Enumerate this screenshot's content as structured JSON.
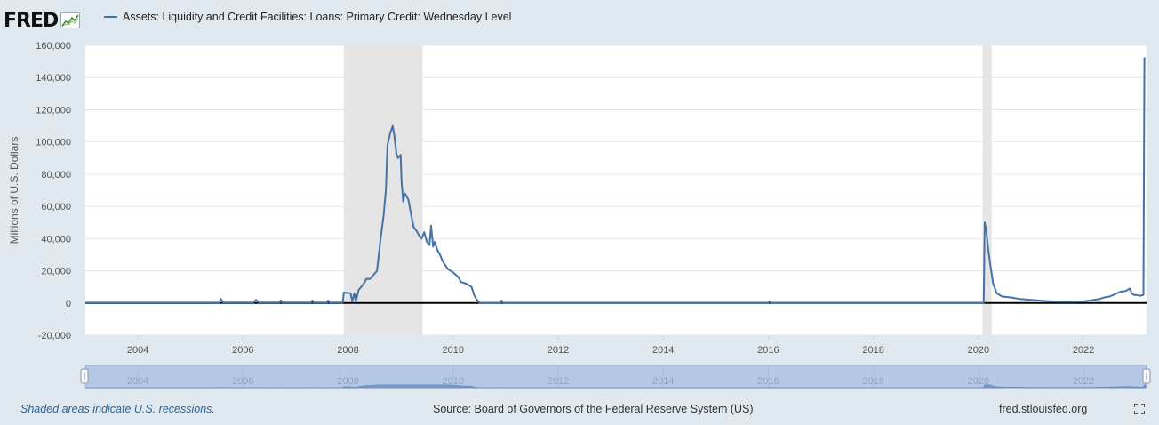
{
  "header": {
    "logo_text": "FRED",
    "legend_label": "Assets: Liquidity and Credit Facilities: Loans: Primary Credit: Wednesday Level",
    "series_color": "#4572a7"
  },
  "footer": {
    "recession_note": "Shaded areas indicate U.S. recessions.",
    "source": "Source: Board of Governors of the Federal Reserve System (US)",
    "site": "fred.stlouisfed.org"
  },
  "icons": {
    "logo": "fred-logo-graph-icon",
    "fullscreen": "fullscreen-icon"
  },
  "chart_data": {
    "type": "line",
    "title": "",
    "xlabel": "",
    "ylabel": "Millions of U.S. Dollars",
    "xlim": [
      2003.0,
      2023.2
    ],
    "ylim": [
      -20000,
      160000
    ],
    "yticks": [
      -20000,
      0,
      20000,
      40000,
      60000,
      80000,
      100000,
      120000,
      140000,
      160000
    ],
    "ytick_labels": [
      "-20,000",
      "0",
      "20,000",
      "40,000",
      "60,000",
      "80,000",
      "100,000",
      "120,000",
      "140,000",
      "160,000"
    ],
    "xticks": [
      2004,
      2006,
      2008,
      2010,
      2012,
      2014,
      2016,
      2018,
      2020,
      2022
    ],
    "xtick_labels": [
      "2004",
      "2006",
      "2008",
      "2010",
      "2012",
      "2014",
      "2016",
      "2018",
      "2020",
      "2022"
    ],
    "grid": true,
    "recessions": [
      [
        2007.92,
        2009.42
      ],
      [
        2020.08,
        2020.25
      ]
    ],
    "navigator_labels": [
      "2004",
      "2006",
      "2008",
      "2010",
      "2012",
      "2014",
      "2016",
      "2018",
      "2020",
      "2022"
    ],
    "series": [
      {
        "name": "Assets: Liquidity and Credit Facilities: Loans: Primary Credit: Wednesday Level",
        "color": "#4572a7",
        "x": [
          2003.0,
          2005.55,
          2005.58,
          2005.62,
          2006.2,
          2006.25,
          2006.3,
          2006.7,
          2006.72,
          2006.75,
          2007.3,
          2007.32,
          2007.35,
          2007.6,
          2007.62,
          2007.65,
          2007.9,
          2007.92,
          2008.05,
          2008.08,
          2008.12,
          2008.15,
          2008.2,
          2008.3,
          2008.35,
          2008.42,
          2008.5,
          2008.55,
          2008.62,
          2008.68,
          2008.72,
          2008.75,
          2008.8,
          2008.85,
          2008.88,
          2008.92,
          2008.95,
          2009.0,
          2009.02,
          2009.05,
          2009.08,
          2009.12,
          2009.15,
          2009.2,
          2009.25,
          2009.3,
          2009.35,
          2009.4,
          2009.45,
          2009.5,
          2009.55,
          2009.58,
          2009.62,
          2009.65,
          2009.7,
          2009.75,
          2009.8,
          2009.9,
          2010.0,
          2010.1,
          2010.15,
          2010.25,
          2010.35,
          2010.4,
          2010.45,
          2010.5,
          2010.55,
          2010.9,
          2010.92,
          2010.95,
          2016.0,
          2016.02,
          2016.05,
          2020.1,
          2020.12,
          2020.15,
          2020.18,
          2020.22,
          2020.28,
          2020.35,
          2020.45,
          2020.6,
          2020.8,
          2021.0,
          2021.2,
          2021.4,
          2021.6,
          2021.8,
          2022.0,
          2022.2,
          2022.3,
          2022.4,
          2022.5,
          2022.6,
          2022.7,
          2022.8,
          2022.88,
          2022.92,
          2022.96,
          2023.0,
          2023.08,
          2023.14,
          2023.16,
          2023.18
        ],
        "values": [
          200,
          200,
          2500,
          300,
          300,
          2000,
          300,
          300,
          1500,
          300,
          300,
          1500,
          300,
          300,
          1500,
          300,
          300,
          6500,
          6000,
          1000,
          6000,
          1000,
          8000,
          12000,
          15000,
          15000,
          18000,
          20000,
          40000,
          55000,
          70000,
          98000,
          105000,
          110000,
          104000,
          93000,
          90000,
          92000,
          75000,
          63000,
          68000,
          66000,
          64000,
          55000,
          47000,
          45000,
          42000,
          40000,
          44000,
          38000,
          36000,
          48000,
          35000,
          38000,
          33000,
          30000,
          26000,
          21000,
          19000,
          16000,
          13000,
          12000,
          10000,
          5000,
          2000,
          200,
          100,
          100,
          1500,
          100,
          100,
          1000,
          100,
          100,
          50000,
          45000,
          35000,
          25000,
          12000,
          6000,
          4000,
          3500,
          2500,
          2000,
          1500,
          1000,
          800,
          800,
          1000,
          2000,
          2500,
          3500,
          4000,
          5500,
          7000,
          7500,
          9000,
          6000,
          5000,
          5000,
          4500,
          5000,
          152000,
          152000
        ]
      }
    ]
  }
}
